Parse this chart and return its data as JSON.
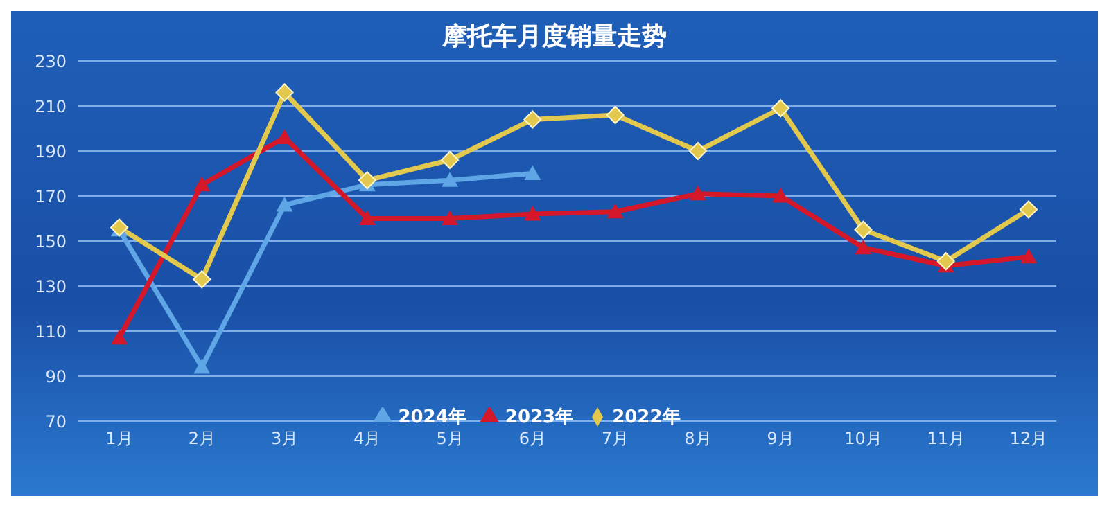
{
  "chart_data": {
    "type": "line",
    "title": "摩托车月度销量走势",
    "categories": [
      "1月",
      "2月",
      "3月",
      "4月",
      "5月",
      "6月",
      "7月",
      "8月",
      "9月",
      "10月",
      "11月",
      "12月"
    ],
    "series": [
      {
        "name": "2024年",
        "color": "#5ea6e6",
        "marker": "triangle",
        "values": [
          155,
          94,
          166,
          175,
          177,
          180,
          null,
          null,
          null,
          null,
          null,
          null
        ]
      },
      {
        "name": "2023年",
        "color": "#d4182a",
        "marker": "triangle",
        "values": [
          107,
          175,
          196,
          160,
          160,
          162,
          163,
          171,
          170,
          147,
          139,
          143
        ]
      },
      {
        "name": "2022年",
        "color": "#e2c84c",
        "marker": "diamond",
        "values": [
          156,
          133,
          216,
          177,
          186,
          204,
          206,
          190,
          209,
          155,
          141,
          164
        ]
      }
    ],
    "ylim": [
      70,
      230
    ],
    "yticks": [
      70,
      90,
      110,
      130,
      150,
      170,
      190,
      210,
      230
    ],
    "grid": "y",
    "legend": "bottom"
  }
}
